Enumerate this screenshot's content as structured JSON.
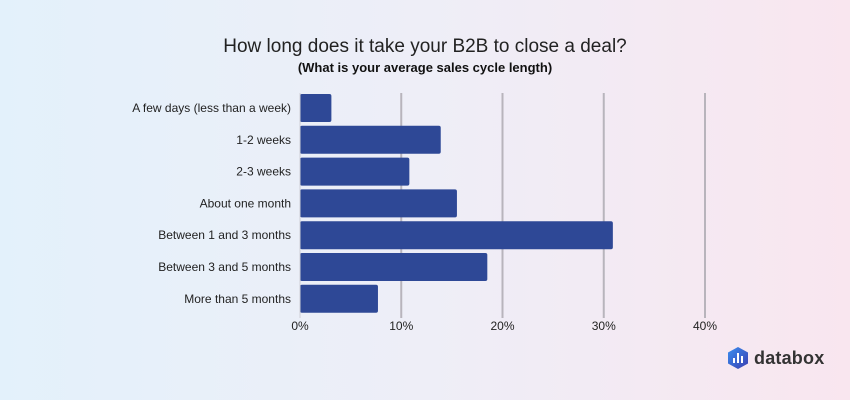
{
  "chart_data": {
    "type": "bar",
    "orientation": "horizontal",
    "title": "How long does it take your B2B to close a deal?",
    "subtitle": "(What is your average sales cycle length)",
    "categories": [
      "A few days (less than a week)",
      "1-2 weeks",
      "2-3 weeks",
      "About one month",
      "Between 1 and 3 months",
      "Between 3 and 5 months",
      "More than 5 months"
    ],
    "values": [
      3.1,
      13.9,
      10.8,
      15.5,
      30.9,
      18.5,
      7.7
    ],
    "xlim": [
      0,
      40
    ],
    "xticks": [
      "0%",
      "10%",
      "20%",
      "30%",
      "40%"
    ],
    "xtick_values": [
      0,
      10,
      20,
      30,
      40
    ],
    "grid": true,
    "bar_color": "#2e4896",
    "grid_color": "#b8b4bc"
  },
  "brand": {
    "name": "databox",
    "icon": "databox-logo-icon",
    "color": "#2f6fd9"
  }
}
